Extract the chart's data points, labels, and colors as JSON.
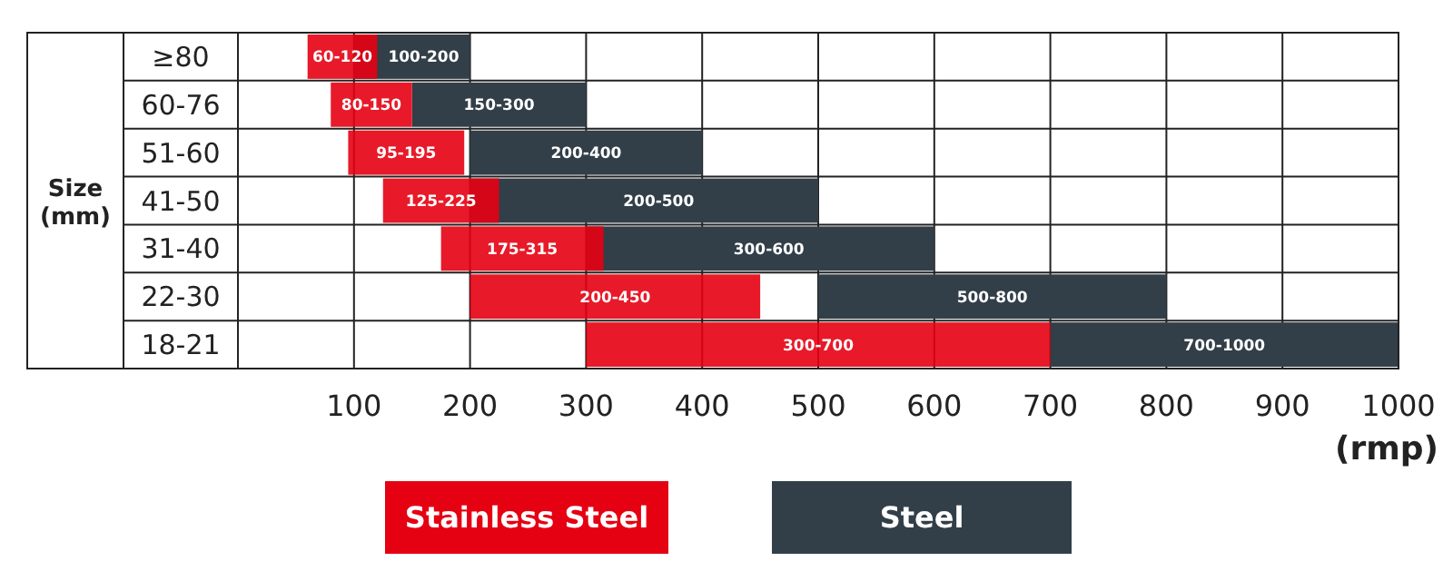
{
  "chart_data": {
    "type": "bar",
    "orientation": "horizontal",
    "ylabel": "Size (mm)",
    "xlabel": "(rmp)",
    "categories": [
      "≥80",
      "60-76",
      "51-60",
      "41-50",
      "31-40",
      "22-30",
      "18-21"
    ],
    "xlim": [
      0,
      1000
    ],
    "xticks": [
      {
        "value": 0,
        "label": null
      },
      100,
      200,
      300,
      400,
      500,
      600,
      700,
      800,
      900,
      1000
    ],
    "grid": true,
    "legend": "bottom",
    "series": [
      {
        "name": "Steel",
        "color": "#333f48",
        "base": [
          100,
          150,
          200,
          200,
          300,
          500,
          700
        ],
        "values": [
          100,
          150,
          200,
          300,
          300,
          300,
          300
        ],
        "value_labels": [
          "100-200",
          "150-300",
          "200-400",
          "200-500",
          "300-600",
          "500-800",
          "700-1000"
        ]
      },
      {
        "name": "Stainless Steel",
        "color": "#e50012",
        "base": [
          60,
          80,
          95,
          125,
          175,
          200,
          300
        ],
        "values": [
          60,
          70,
          100,
          100,
          140,
          250,
          400
        ],
        "value_labels": [
          "60-120",
          "80-150",
          "95-195",
          "125-225",
          "175-315",
          "200-450",
          "300-700"
        ]
      }
    ]
  }
}
